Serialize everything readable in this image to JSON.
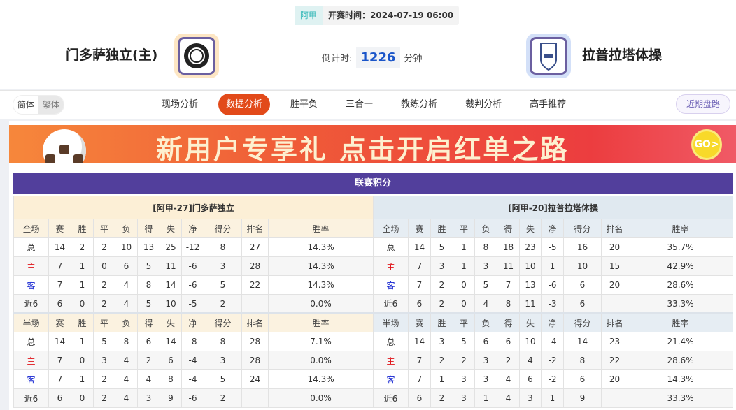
{
  "header": {
    "league": "阿甲",
    "kickoff": "开赛时间：2024-07-19 06:00",
    "home": "门多萨独立(主)",
    "away": "拉普拉塔体操",
    "countdown_label": "倒计时:",
    "countdown_value": "1226",
    "countdown_unit": "分钟"
  },
  "nav": {
    "lang": [
      "简体",
      "繁体"
    ],
    "tabs": [
      "现场分析",
      "数据分析",
      "胜平负",
      "三合一",
      "教练分析",
      "裁判分析",
      "高手推荐"
    ],
    "active_tab": "数据分析",
    "recent": "近期盘路"
  },
  "banner": {
    "text": "新用户专享礼  点击开启红单之路",
    "go": "GO>"
  },
  "standings": {
    "title": "联赛积分",
    "columns_full": [
      "全场",
      "赛",
      "胜",
      "平",
      "负",
      "得",
      "失",
      "净",
      "得分",
      "排名",
      "胜率"
    ],
    "columns_half": [
      "半场",
      "赛",
      "胜",
      "平",
      "负",
      "得",
      "失",
      "净",
      "得分",
      "排名",
      "胜率"
    ],
    "home": {
      "title": "[阿甲-27]门多萨独立",
      "full": [
        [
          "总",
          "14",
          "2",
          "2",
          "10",
          "13",
          "25",
          "-12",
          "8",
          "27",
          "14.3%"
        ],
        [
          "主",
          "7",
          "1",
          "0",
          "6",
          "5",
          "11",
          "-6",
          "3",
          "28",
          "14.3%"
        ],
        [
          "客",
          "7",
          "1",
          "2",
          "4",
          "8",
          "14",
          "-6",
          "5",
          "22",
          "14.3%"
        ],
        [
          "近6",
          "6",
          "0",
          "2",
          "4",
          "5",
          "10",
          "-5",
          "2",
          "",
          "0.0%"
        ]
      ],
      "half": [
        [
          "总",
          "14",
          "1",
          "5",
          "8",
          "6",
          "14",
          "-8",
          "8",
          "28",
          "7.1%"
        ],
        [
          "主",
          "7",
          "0",
          "3",
          "4",
          "2",
          "6",
          "-4",
          "3",
          "28",
          "0.0%"
        ],
        [
          "客",
          "7",
          "1",
          "2",
          "4",
          "4",
          "8",
          "-4",
          "5",
          "24",
          "14.3%"
        ],
        [
          "近6",
          "6",
          "0",
          "2",
          "4",
          "3",
          "9",
          "-6",
          "2",
          "",
          "0.0%"
        ]
      ]
    },
    "away": {
      "title": "[阿甲-20]拉普拉塔体操",
      "full": [
        [
          "总",
          "14",
          "5",
          "1",
          "8",
          "18",
          "23",
          "-5",
          "16",
          "20",
          "35.7%"
        ],
        [
          "主",
          "7",
          "3",
          "1",
          "3",
          "11",
          "10",
          "1",
          "10",
          "15",
          "42.9%"
        ],
        [
          "客",
          "7",
          "2",
          "0",
          "5",
          "7",
          "13",
          "-6",
          "6",
          "20",
          "28.6%"
        ],
        [
          "近6",
          "6",
          "2",
          "0",
          "4",
          "8",
          "11",
          "-3",
          "6",
          "",
          "33.3%"
        ]
      ],
      "half": [
        [
          "总",
          "14",
          "3",
          "5",
          "6",
          "6",
          "10",
          "-4",
          "14",
          "23",
          "21.4%"
        ],
        [
          "主",
          "7",
          "2",
          "2",
          "3",
          "2",
          "4",
          "-2",
          "8",
          "22",
          "28.6%"
        ],
        [
          "客",
          "7",
          "1",
          "3",
          "3",
          "4",
          "6",
          "-2",
          "6",
          "20",
          "14.3%"
        ],
        [
          "近6",
          "6",
          "2",
          "3",
          "1",
          "4",
          "3",
          "1",
          "9",
          "",
          "33.3%"
        ]
      ]
    }
  }
}
